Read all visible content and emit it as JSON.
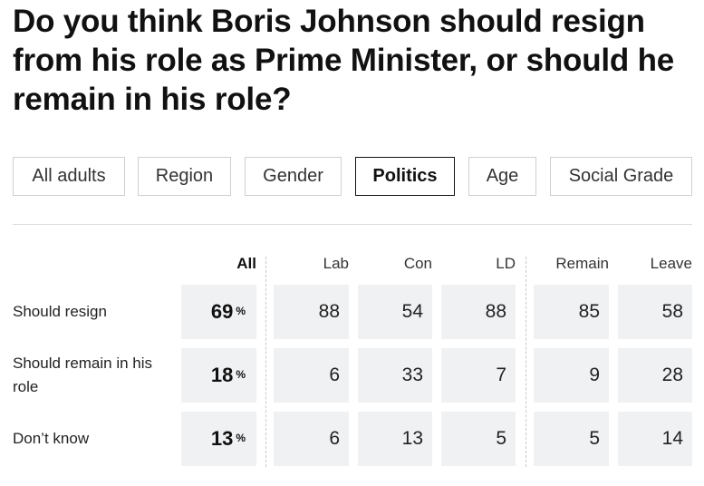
{
  "question": "Do you think Boris Johnson should resign from his role as Prime Minister, or should he remain in his role?",
  "tabs": [
    {
      "label": "All adults",
      "active": false
    },
    {
      "label": "Region",
      "active": false
    },
    {
      "label": "Gender",
      "active": false
    },
    {
      "label": "Politics",
      "active": true
    },
    {
      "label": "Age",
      "active": false
    },
    {
      "label": "Social Grade",
      "active": false
    }
  ],
  "table": {
    "columns": [
      "All",
      "Lab",
      "Con",
      "LD",
      "Remain",
      "Leave"
    ],
    "percent_sign": "%",
    "rows": [
      {
        "label": "Should resign",
        "all": "69",
        "values": [
          "88",
          "54",
          "88",
          "85",
          "58"
        ]
      },
      {
        "label": "Should remain in his role",
        "all": "18",
        "values": [
          "6",
          "33",
          "7",
          "9",
          "28"
        ]
      },
      {
        "label": "Don’t know",
        "all": "13",
        "values": [
          "6",
          "13",
          "5",
          "5",
          "14"
        ]
      }
    ]
  }
}
